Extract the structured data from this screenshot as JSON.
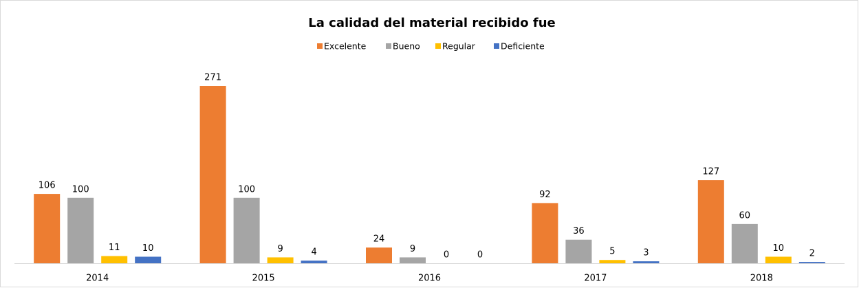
{
  "chart_data": {
    "type": "bar",
    "title": "La calidad del material recibido fue",
    "categories": [
      "2014",
      "2015",
      "2016",
      "2017",
      "2018"
    ],
    "series": [
      {
        "name": "Excelente",
        "color": "#ed7d31",
        "values": [
          106,
          271,
          24,
          92,
          127
        ]
      },
      {
        "name": "Bueno",
        "color": "#a5a5a5",
        "values": [
          100,
          100,
          9,
          36,
          60
        ]
      },
      {
        "name": "Regular",
        "color": "#ffc000",
        "values": [
          11,
          9,
          0,
          5,
          10
        ]
      },
      {
        "name": "Deficiente",
        "color": "#4472c4",
        "values": [
          10,
          4,
          0,
          3,
          2
        ]
      }
    ],
    "legend": "top"
  }
}
